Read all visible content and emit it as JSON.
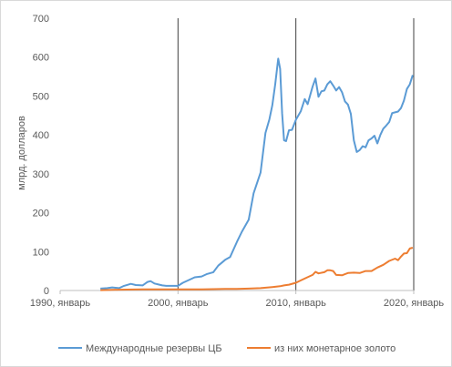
{
  "chart_data": {
    "type": "line",
    "title": "",
    "ylabel": "млрд. долларов",
    "xlabel": "",
    "ylim": [
      0,
      700
    ],
    "yticks": [
      0,
      100,
      200,
      300,
      400,
      500,
      600,
      700
    ],
    "xlim": [
      "1990-01",
      "2020-01"
    ],
    "xtick_labels": [
      "1990, январь",
      "2000, январь",
      "2010, январь",
      "2020, январь"
    ],
    "xtick_values": [
      "1990-01",
      "2000-01",
      "2010-01",
      "2020-01"
    ],
    "vertical_lines": [
      "2000-01",
      "2010-01",
      "2020-01"
    ],
    "grid": false,
    "legend_position": "bottom",
    "series": [
      {
        "name": "Международные резервы ЦБ",
        "color": "#5B9BD5",
        "points": [
          [
            "1993-06",
            5
          ],
          [
            "1994-01",
            6
          ],
          [
            "1994-06",
            8
          ],
          [
            "1995-01",
            6
          ],
          [
            "1995-06",
            12
          ],
          [
            "1996-01",
            17
          ],
          [
            "1996-06",
            14
          ],
          [
            "1997-01",
            13
          ],
          [
            "1997-06",
            22
          ],
          [
            "1997-09",
            24
          ],
          [
            "1998-01",
            18
          ],
          [
            "1998-06",
            15
          ],
          [
            "1998-09",
            13
          ],
          [
            "1999-01",
            12
          ],
          [
            "1999-06",
            12
          ],
          [
            "2000-01",
            12
          ],
          [
            "2000-06",
            20
          ],
          [
            "2001-01",
            28
          ],
          [
            "2001-06",
            34
          ],
          [
            "2002-01",
            36
          ],
          [
            "2002-06",
            42
          ],
          [
            "2003-01",
            47
          ],
          [
            "2003-06",
            64
          ],
          [
            "2004-01",
            79
          ],
          [
            "2004-06",
            86
          ],
          [
            "2005-01",
            125
          ],
          [
            "2005-06",
            151
          ],
          [
            "2006-01",
            182
          ],
          [
            "2006-06",
            250
          ],
          [
            "2007-01",
            303
          ],
          [
            "2007-06",
            405
          ],
          [
            "2007-10",
            440
          ],
          [
            "2008-01",
            476
          ],
          [
            "2008-04",
            530
          ],
          [
            "2008-07",
            596
          ],
          [
            "2008-09",
            570
          ],
          [
            "2008-11",
            455
          ],
          [
            "2009-01",
            386
          ],
          [
            "2009-03",
            384
          ],
          [
            "2009-06",
            412
          ],
          [
            "2009-09",
            413
          ],
          [
            "2010-01",
            439
          ],
          [
            "2010-06",
            461
          ],
          [
            "2010-10",
            492
          ],
          [
            "2011-01",
            479
          ],
          [
            "2011-06",
            524
          ],
          [
            "2011-09",
            545
          ],
          [
            "2011-12",
            498
          ],
          [
            "2012-03",
            512
          ],
          [
            "2012-06",
            514
          ],
          [
            "2012-09",
            530
          ],
          [
            "2012-12",
            538
          ],
          [
            "2013-03",
            527
          ],
          [
            "2013-06",
            514
          ],
          [
            "2013-09",
            523
          ],
          [
            "2013-12",
            510
          ],
          [
            "2014-03",
            486
          ],
          [
            "2014-06",
            478
          ],
          [
            "2014-09",
            454
          ],
          [
            "2014-12",
            386
          ],
          [
            "2015-03",
            356
          ],
          [
            "2015-06",
            361
          ],
          [
            "2015-09",
            371
          ],
          [
            "2015-12",
            368
          ],
          [
            "2016-03",
            386
          ],
          [
            "2016-06",
            391
          ],
          [
            "2016-09",
            398
          ],
          [
            "2016-12",
            378
          ],
          [
            "2017-03",
            400
          ],
          [
            "2017-06",
            416
          ],
          [
            "2017-09",
            424
          ],
          [
            "2017-12",
            433
          ],
          [
            "2018-03",
            456
          ],
          [
            "2018-06",
            458
          ],
          [
            "2018-09",
            460
          ],
          [
            "2018-12",
            469
          ],
          [
            "2019-03",
            488
          ],
          [
            "2019-06",
            518
          ],
          [
            "2019-09",
            530
          ],
          [
            "2019-12",
            554
          ]
        ]
      },
      {
        "name": "из них монетарное золото",
        "color": "#ED7D31",
        "points": [
          [
            "1993-06",
            1
          ],
          [
            "1995-01",
            2
          ],
          [
            "1997-01",
            3
          ],
          [
            "1999-01",
            3
          ],
          [
            "2000-01",
            3
          ],
          [
            "2002-01",
            3
          ],
          [
            "2004-01",
            4
          ],
          [
            "2005-01",
            4
          ],
          [
            "2006-01",
            5
          ],
          [
            "2007-01",
            6
          ],
          [
            "2008-01",
            9
          ],
          [
            "2008-09",
            11
          ],
          [
            "2009-01",
            13
          ],
          [
            "2009-06",
            15
          ],
          [
            "2010-01",
            20
          ],
          [
            "2010-06",
            26
          ],
          [
            "2010-12",
            33
          ],
          [
            "2011-06",
            40
          ],
          [
            "2011-09",
            48
          ],
          [
            "2011-12",
            44
          ],
          [
            "2012-06",
            47
          ],
          [
            "2012-09",
            52
          ],
          [
            "2012-12",
            52
          ],
          [
            "2013-03",
            50
          ],
          [
            "2013-06",
            40
          ],
          [
            "2013-12",
            39
          ],
          [
            "2014-06",
            45
          ],
          [
            "2014-12",
            46
          ],
          [
            "2015-06",
            45
          ],
          [
            "2015-12",
            50
          ],
          [
            "2016-06",
            50
          ],
          [
            "2016-12",
            59
          ],
          [
            "2017-06",
            66
          ],
          [
            "2017-12",
            76
          ],
          [
            "2018-06",
            82
          ],
          [
            "2018-09",
            78
          ],
          [
            "2018-12",
            87
          ],
          [
            "2019-03",
            95
          ],
          [
            "2019-06",
            96
          ],
          [
            "2019-09",
            108
          ],
          [
            "2019-12",
            110
          ]
        ]
      }
    ]
  }
}
